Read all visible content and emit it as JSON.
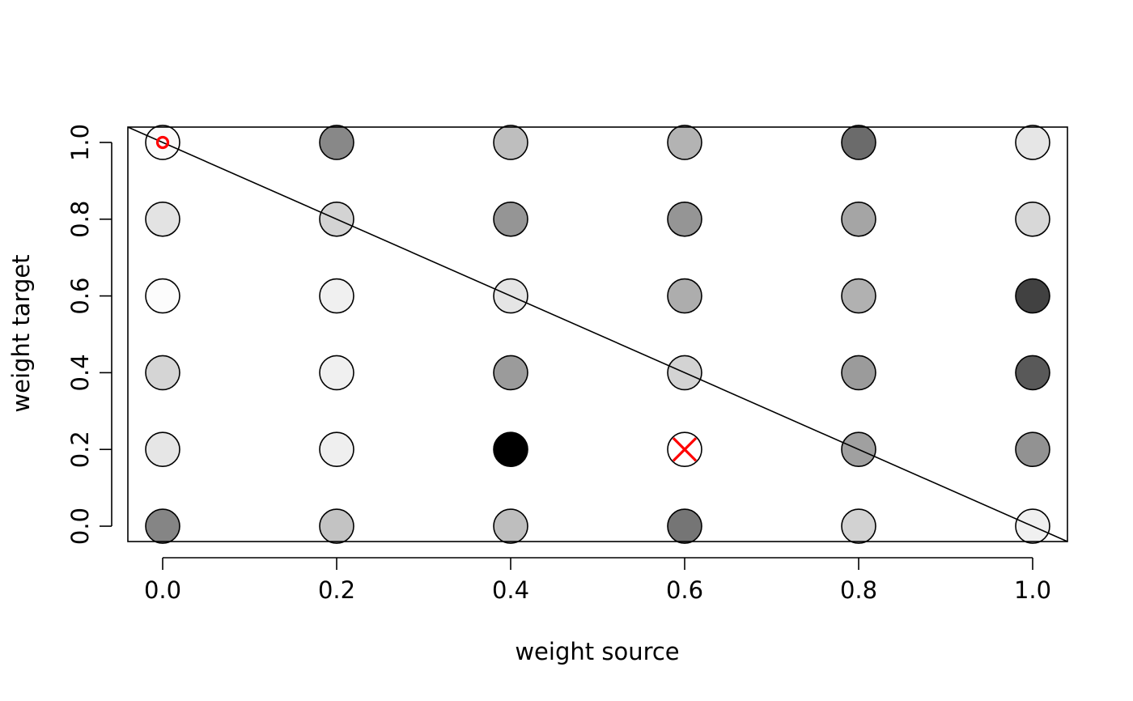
{
  "chart_data": {
    "type": "scatter",
    "title": "",
    "xlabel": "weight source",
    "ylabel": "weight target",
    "xlim": [
      -0.04,
      1.04
    ],
    "ylim": [
      -0.04,
      1.04
    ],
    "grid": false,
    "legend": "none",
    "x_ticks": [
      "0.0",
      "0.2",
      "0.4",
      "0.6",
      "0.8",
      "1.0"
    ],
    "y_ticks": [
      "0.0",
      "0.2",
      "0.4",
      "0.6",
      "0.8",
      "1.0"
    ],
    "x_values": [
      0.0,
      0.2,
      0.4,
      0.6,
      0.8,
      1.0
    ],
    "y_values": [
      1.0,
      0.8,
      0.6,
      0.4,
      0.2,
      0.0
    ],
    "fill_colors": [
      [
        "#fafafa",
        "#888888",
        "#bebebe",
        "#b3b3b3",
        "#6b6b6b",
        "#e6e6e6"
      ],
      [
        "#e3e3e3",
        "#d3d3d3",
        "#959595",
        "#959595",
        "#a5a5a5",
        "#d8d8d8"
      ],
      [
        "#fcfcfc",
        "#f0f0f0",
        "#e5e5e5",
        "#adadad",
        "#b1b1b1",
        "#414141"
      ],
      [
        "#d5d5d5",
        "#f0f0f0",
        "#9b9b9b",
        "#d3d3d3",
        "#9b9b9b",
        "#595959"
      ],
      [
        "#e6e6e6",
        "#efefef",
        "#000000",
        "#ffffff",
        "#a0a0a0",
        "#929292"
      ],
      [
        "#858585",
        "#c3c3c3",
        "#bebebe",
        "#757575",
        "#d2d2d2",
        "#f0f0f0"
      ]
    ],
    "reference_line": {
      "from": [
        0,
        1
      ],
      "to": [
        1,
        0
      ]
    },
    "markers": [
      {
        "symbol": "circle",
        "x": 0.0,
        "y": 1.0,
        "color": "#ff0000"
      },
      {
        "symbol": "cross",
        "x": 0.6,
        "y": 0.2,
        "color": "#ff0000"
      }
    ]
  }
}
